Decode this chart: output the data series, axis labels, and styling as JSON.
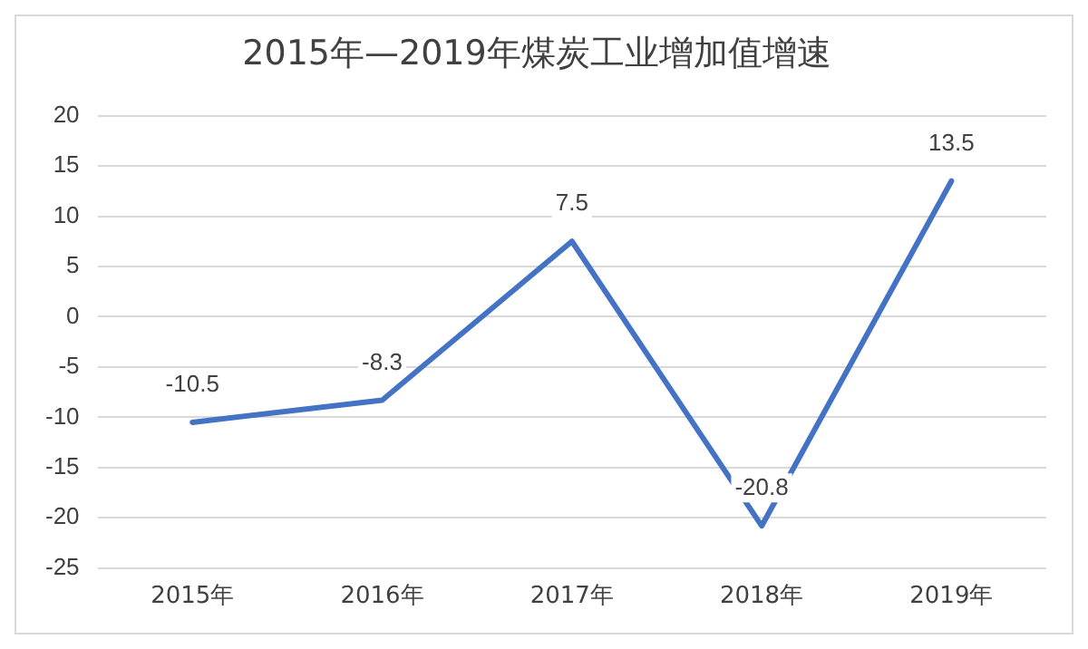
{
  "chart_data": {
    "type": "line",
    "title": "2015年—2019年煤炭工业增加值增速",
    "categories": [
      "2015年",
      "2016年",
      "2017年",
      "2018年",
      "2019年"
    ],
    "series": [
      {
        "color": "#4472c4",
        "values": [
          -10.5,
          -8.3,
          7.5,
          -20.8,
          13.5
        ]
      }
    ],
    "ylim": [
      -25,
      20
    ],
    "yticks": [
      -25,
      -20,
      -15,
      -10,
      -5,
      0,
      5,
      10,
      15,
      20
    ],
    "grid": "y",
    "data_labels": true,
    "marker": "none",
    "line_style": "solid"
  }
}
